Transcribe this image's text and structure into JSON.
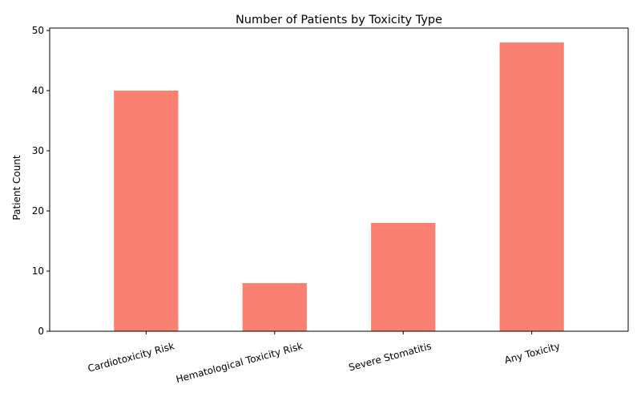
{
  "chart_data": {
    "type": "bar",
    "title": "Number of Patients by Toxicity Type",
    "xlabel": "",
    "ylabel": "Patient Count",
    "categories": [
      "Cardiotoxicity Risk",
      "Hematological Toxicity Risk",
      "Severe Stomatitis",
      "Any Toxicity"
    ],
    "values": [
      40,
      8,
      18,
      48
    ],
    "ylim": [
      0,
      50.4
    ],
    "yticks": [
      0,
      10,
      20,
      30,
      40,
      50
    ],
    "bar_color": "#fa8072",
    "grid": false,
    "legend": "none"
  }
}
